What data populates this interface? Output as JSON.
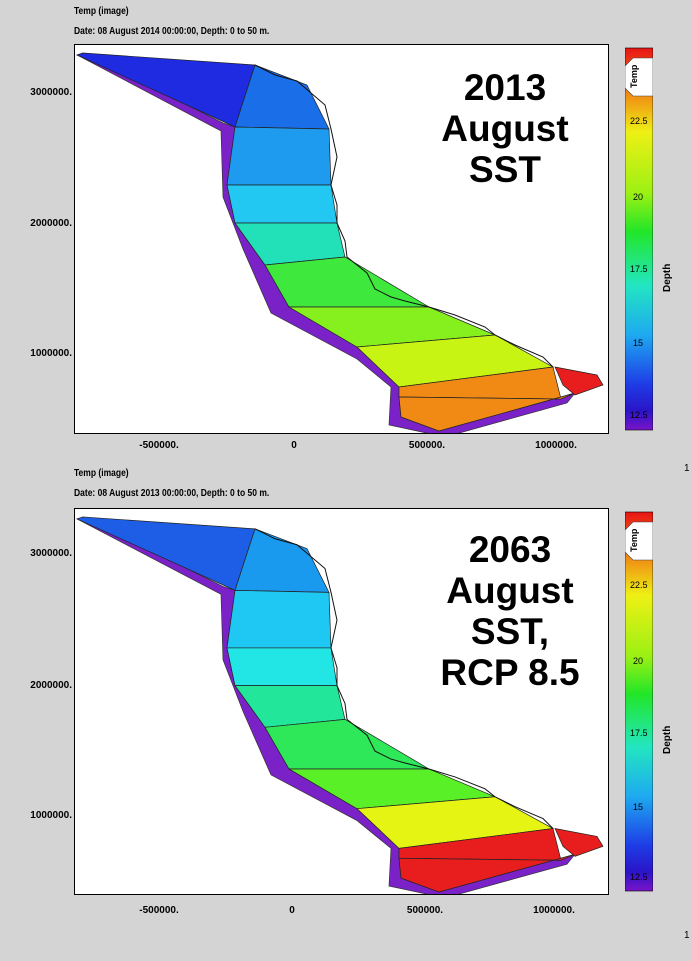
{
  "panels": [
    {
      "title": "Temp (image)",
      "subtitle": "Date: 08 August 2014 00:00:00, Depth: 0 to 50 m.",
      "overlay": [
        "2013",
        "August",
        "SST"
      ],
      "y_ticks": [
        "3000000.",
        "2000000.",
        "1000000."
      ],
      "x_ticks": [
        "-500000.",
        "0",
        "500000.",
        "1000000."
      ],
      "colorbar_title": "Temp",
      "colorbar_labels": [
        "22.5",
        "20",
        "17.5",
        "15",
        "12.5"
      ],
      "depth_label": "Depth",
      "zone_colors": [
        "#1e2be0",
        "#1a6ee8",
        "#1e9bee",
        "#22c8f2",
        "#22e0b8",
        "#3ee83c",
        "#86f01e",
        "#c8f414",
        "#f08a14"
      ],
      "edge_color": "#7a22c8",
      "tip_color": "#e81e1e"
    },
    {
      "title": "Temp (image)",
      "subtitle": "Date: 08 August 2013 00:00:00, Depth: 0 to 50 m.",
      "overlay": [
        "2063",
        "August",
        "SST,",
        "RCP 8.5"
      ],
      "y_ticks": [
        "3000000.",
        "2000000.",
        "1000000."
      ],
      "x_ticks": [
        "-500000.",
        "0",
        "500000.",
        "1000000."
      ],
      "colorbar_title": "Temp",
      "colorbar_labels": [
        "22.5",
        "20",
        "17.5",
        "15",
        "12.5"
      ],
      "depth_label": "Depth",
      "zone_colors": [
        "#1e5ee6",
        "#1a9aee",
        "#1ec8f2",
        "#22e6e6",
        "#22e69a",
        "#2ee85a",
        "#5af028",
        "#e6f414",
        "#e81e1e"
      ],
      "edge_color": "#7a22c8",
      "tip_color": "#e81e1e"
    }
  ],
  "edge_marks": [
    "1",
    "1"
  ]
}
